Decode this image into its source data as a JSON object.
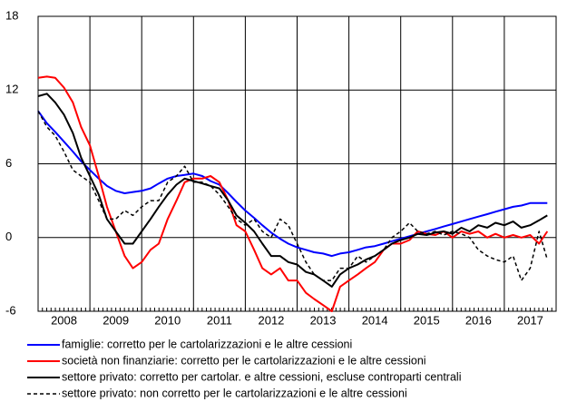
{
  "chart_data": {
    "type": "line",
    "x": [
      2008,
      2008.17,
      2008.33,
      2008.5,
      2008.67,
      2008.83,
      2009,
      2009.17,
      2009.33,
      2009.5,
      2009.67,
      2009.83,
      2010,
      2010.17,
      2010.33,
      2010.5,
      2010.67,
      2010.83,
      2011,
      2011.17,
      2011.33,
      2011.5,
      2011.67,
      2011.83,
      2012,
      2012.17,
      2012.33,
      2012.5,
      2012.67,
      2012.83,
      2013,
      2013.17,
      2013.33,
      2013.5,
      2013.67,
      2013.83,
      2014,
      2014.17,
      2014.33,
      2014.5,
      2014.67,
      2014.83,
      2015,
      2015.17,
      2015.33,
      2015.5,
      2015.67,
      2015.83,
      2016,
      2016.17,
      2016.33,
      2016.5,
      2016.67,
      2016.83,
      2017,
      2017.17,
      2017.33,
      2017.5,
      2017.67,
      2017.83
    ],
    "series": [
      {
        "name": "famiglie: corretto per le cartolarizzazioni e le altre cessioni",
        "color": "#0000ff",
        "dashed": false,
        "values": [
          10.3,
          9.3,
          8.6,
          7.8,
          7.0,
          6.2,
          5.5,
          4.8,
          4.2,
          3.8,
          3.6,
          3.7,
          3.8,
          4.0,
          4.4,
          4.8,
          5.0,
          5.1,
          5.2,
          5.0,
          4.6,
          4.3,
          3.6,
          2.9,
          2.2,
          1.6,
          1.0,
          0.4,
          -0.1,
          -0.5,
          -0.8,
          -1.0,
          -1.2,
          -1.3,
          -1.5,
          -1.3,
          -1.2,
          -1.0,
          -0.8,
          -0.7,
          -0.5,
          -0.3,
          -0.1,
          0.1,
          0.3,
          0.5,
          0.7,
          0.9,
          1.1,
          1.3,
          1.5,
          1.7,
          1.9,
          2.1,
          2.3,
          2.5,
          2.6,
          2.8,
          2.8,
          2.8
        ]
      },
      {
        "name": "società non finanziarie: corretto per le cartolarizzazioni e le altre cessioni",
        "color": "#ff0000",
        "dashed": false,
        "values": [
          13.0,
          13.1,
          13.0,
          12.2,
          11.0,
          9.0,
          7.5,
          5.0,
          2.5,
          0.5,
          -1.5,
          -2.5,
          -2.0,
          -1.0,
          -0.5,
          1.5,
          3.0,
          4.5,
          4.8,
          4.8,
          5.0,
          4.5,
          3.0,
          1.0,
          0.5,
          -1.0,
          -2.5,
          -3.0,
          -2.5,
          -3.5,
          -3.5,
          -4.5,
          -5.0,
          -5.5,
          -6.0,
          -4.0,
          -3.5,
          -3.0,
          -2.5,
          -2.0,
          -1.0,
          -0.5,
          -0.5,
          -0.2,
          0.5,
          0.3,
          0.2,
          0.5,
          0.0,
          0.5,
          0.3,
          0.5,
          0.0,
          0.3,
          0.0,
          0.2,
          0.0,
          0.2,
          -0.5,
          0.5
        ]
      },
      {
        "name": "settore privato: corretto per cartolar. e altre cessioni, escluse controparti centrali",
        "color": "#000000",
        "dashed": false,
        "values": [
          11.5,
          11.7,
          11.0,
          10.0,
          8.5,
          6.5,
          5.0,
          3.5,
          1.5,
          0.5,
          -0.5,
          -0.5,
          0.5,
          1.5,
          2.5,
          3.5,
          4.3,
          4.8,
          4.6,
          4.4,
          4.2,
          4.0,
          3.0,
          1.8,
          1.2,
          0.5,
          -0.5,
          -1.5,
          -1.5,
          -2.0,
          -2.2,
          -2.8,
          -3.0,
          -3.5,
          -4.0,
          -3.0,
          -2.5,
          -2.2,
          -1.8,
          -1.5,
          -1.0,
          -0.5,
          -0.2,
          0.0,
          0.3,
          0.2,
          0.4,
          0.5,
          0.3,
          0.8,
          0.5,
          1.0,
          0.8,
          1.2,
          1.0,
          1.3,
          0.8,
          1.0,
          1.4,
          1.8
        ]
      },
      {
        "name": "settore privato: non corretto per le cartolarizzazioni e le altre cessioni",
        "color": "#000000",
        "dashed": true,
        "values": [
          10.3,
          9.0,
          8.3,
          7.0,
          5.5,
          5.0,
          4.5,
          3.0,
          1.5,
          1.5,
          2.2,
          1.8,
          2.5,
          3.0,
          3.0,
          4.5,
          5.0,
          5.8,
          4.5,
          4.5,
          4.2,
          3.5,
          2.5,
          1.5,
          1.0,
          1.5,
          0.5,
          0.0,
          1.5,
          1.0,
          -0.5,
          -2.0,
          -3.0,
          -3.5,
          -3.5,
          -2.5,
          -2.5,
          -1.5,
          -2.0,
          -1.5,
          -1.0,
          0.0,
          0.5,
          1.2,
          0.5,
          0.3,
          0.5,
          0.2,
          0.5,
          0.3,
          0.0,
          -1.0,
          -1.5,
          -1.8,
          -2.0,
          -1.5,
          -3.5,
          -2.5,
          0.5,
          -1.8
        ]
      }
    ],
    "xlim": [
      2008,
      2018
    ],
    "xticks": [
      {
        "value": 2008.5,
        "label": "2008"
      },
      {
        "value": 2009.5,
        "label": "2009"
      },
      {
        "value": 2010.5,
        "label": "2010"
      },
      {
        "value": 2011.5,
        "label": "2011"
      },
      {
        "value": 2012.5,
        "label": "2012"
      },
      {
        "value": 2013.5,
        "label": "2013"
      },
      {
        "value": 2014.5,
        "label": "2014"
      },
      {
        "value": 2015.5,
        "label": "2015"
      },
      {
        "value": 2016.5,
        "label": "2016"
      },
      {
        "value": 2017.5,
        "label": "2017"
      }
    ],
    "ylim": [
      -6,
      18
    ],
    "yticks": [
      -6,
      0,
      6,
      12,
      18
    ],
    "grid": true,
    "legend": "bottom"
  }
}
